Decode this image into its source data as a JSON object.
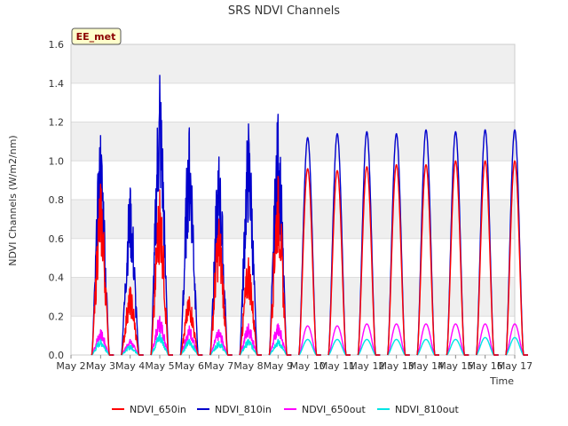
{
  "chart_data": {
    "type": "line",
    "title": "SRS NDVI Channels",
    "xlabel": "Time",
    "ylabel": "NDVI Channels (W/m2/nm)",
    "badge": "EE_met",
    "ylim": [
      0,
      1.6
    ],
    "xlim": [
      2,
      17
    ],
    "yticks": [
      "0.0",
      "0.2",
      "0.4",
      "0.6",
      "0.8",
      "1.0",
      "1.2",
      "1.4",
      "1.6"
    ],
    "xticks": [
      "May 2",
      "May 3",
      "May 4",
      "May 5",
      "May 6",
      "May 7",
      "May 8",
      "May 9",
      "May 10",
      "May 11",
      "May 12",
      "May 13",
      "May 14",
      "May 15",
      "May 16",
      "May 17"
    ],
    "grid": true,
    "legend_position": "bottom",
    "series": [
      {
        "name": "NDVI_650in",
        "color": "#ff0000",
        "daily_peaks": [
          0.88,
          0.35,
          0.85,
          0.3,
          0.7,
          0.5,
          0.92,
          0.96,
          0.95,
          0.97,
          0.98,
          0.98,
          1.0,
          1.0,
          1.0
        ]
      },
      {
        "name": "NDVI_810in",
        "color": "#0000cc",
        "daily_peaks": [
          1.13,
          0.86,
          1.44,
          1.17,
          1.02,
          1.19,
          1.24,
          1.12,
          1.14,
          1.15,
          1.14,
          1.16,
          1.15,
          1.16,
          1.16
        ]
      },
      {
        "name": "NDVI_650out",
        "color": "#ff00ff",
        "daily_peaks": [
          0.13,
          0.08,
          0.2,
          0.15,
          0.13,
          0.16,
          0.16,
          0.15,
          0.15,
          0.16,
          0.16,
          0.16,
          0.16,
          0.16,
          0.16
        ]
      },
      {
        "name": "NDVI_810out",
        "color": "#00e5e5",
        "daily_peaks": [
          0.08,
          0.05,
          0.11,
          0.08,
          0.07,
          0.08,
          0.08,
          0.08,
          0.08,
          0.08,
          0.08,
          0.08,
          0.08,
          0.09,
          0.09
        ]
      }
    ]
  }
}
